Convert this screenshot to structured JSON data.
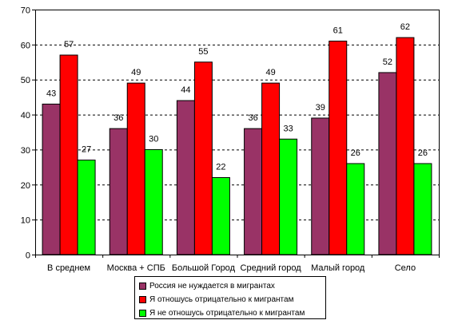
{
  "chart_data": {
    "type": "bar",
    "title": "",
    "xlabel": "",
    "ylabel": "",
    "ylim": [
      0,
      70
    ],
    "yticks": [
      0,
      10,
      20,
      30,
      40,
      50,
      60,
      70
    ],
    "grid": true,
    "legend_placement": "bottom",
    "categories": [
      "В среднем",
      "Москва + СПБ",
      "Большой Город",
      "Средний город",
      "Малый город",
      "Село"
    ],
    "series": [
      {
        "name": "Россия не нуждается в мигрантах",
        "color": "#993366",
        "values": [
          43,
          36,
          44,
          36,
          39,
          52
        ]
      },
      {
        "name": "Я отношусь отрицательно к мигрантам",
        "color": "#ff0000",
        "values": [
          57,
          49,
          55,
          49,
          61,
          62
        ]
      },
      {
        "name": "Я не отношусь отрицательно к мигрантам",
        "color": "#00ff00",
        "values": [
          27,
          30,
          22,
          33,
          26,
          26
        ]
      }
    ]
  }
}
